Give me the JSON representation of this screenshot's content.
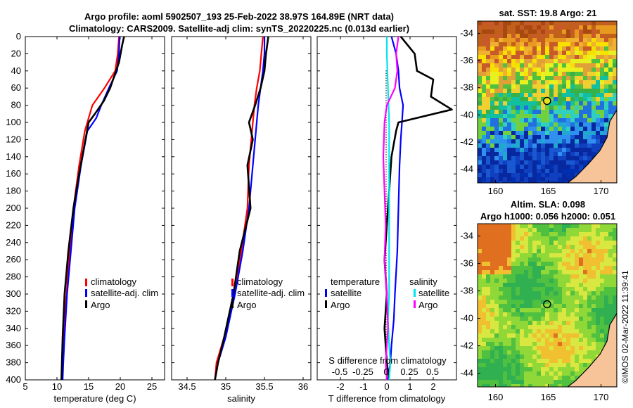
{
  "header": {
    "title_line1": "Argo profile: aoml 5902507_193 25-Feb-2022 38.97S 164.89E (NRT data)",
    "title_line2": "Climatology: CARS2009. Satellite-adj clim: synTS_20220225.nc (0.013d earlier)"
  },
  "depth_axis": {
    "ticks": [
      0,
      20,
      40,
      60,
      80,
      100,
      120,
      140,
      160,
      180,
      200,
      220,
      240,
      260,
      280,
      300,
      320,
      340,
      360,
      380,
      400
    ],
    "range": [
      0,
      400
    ]
  },
  "chart_data": [
    {
      "type": "line",
      "name": "temperature",
      "xlabel": "temperature (deg C)",
      "xlim": [
        5,
        27
      ],
      "xticks": [
        5,
        10,
        15,
        20,
        25
      ],
      "ylim": [
        0,
        400
      ],
      "series": [
        {
          "name": "climatology",
          "color": "#ff0000",
          "x": [
            19.8,
            19.6,
            19.2,
            17.5,
            15.6,
            14.8,
            14.4,
            13.5,
            12.6,
            12.0,
            11.5,
            11.0,
            10.9,
            10.7
          ],
          "y": [
            0,
            20,
            40,
            60,
            80,
            100,
            110,
            150,
            200,
            250,
            300,
            350,
            380,
            400
          ]
        },
        {
          "name": "satellite-adj. clim",
          "color": "#0000ff",
          "x": [
            19.9,
            19.8,
            19.5,
            18.2,
            17.0,
            16.2,
            14.8,
            13.8,
            12.8,
            12.2,
            11.6,
            11.2,
            11.0,
            10.9
          ],
          "y": [
            0,
            20,
            40,
            60,
            80,
            95,
            110,
            150,
            200,
            250,
            300,
            350,
            380,
            400
          ]
        },
        {
          "name": "Argo",
          "color": "#000000",
          "x": [
            20.6,
            20.3,
            19.8,
            18.4,
            17.4,
            16.0,
            15.0,
            14.5,
            13.5,
            12.6,
            11.8,
            11.2,
            10.9,
            10.7
          ],
          "y": [
            0,
            10,
            30,
            60,
            75,
            90,
            100,
            120,
            160,
            200,
            250,
            300,
            350,
            400
          ]
        }
      ],
      "legend": [
        "climatology",
        "satellite-adj. clim",
        "Argo"
      ]
    },
    {
      "type": "line",
      "name": "salinity",
      "xlabel": "salinity",
      "xlim": [
        34.3,
        36.1
      ],
      "xticks": [
        34.5,
        35,
        35.5,
        36
      ],
      "xtick_labels": [
        "34.5",
        "35",
        "35.5",
        "36"
      ],
      "ylim": [
        0,
        400
      ],
      "series": [
        {
          "name": "climatology",
          "color": "#ff0000",
          "x": [
            35.48,
            35.46,
            35.44,
            35.4,
            35.37,
            35.35,
            35.33,
            35.3,
            35.28,
            35.2,
            35.1,
            34.98,
            34.88,
            34.86
          ],
          "y": [
            0,
            20,
            40,
            60,
            80,
            100,
            120,
            150,
            200,
            250,
            300,
            350,
            380,
            400
          ]
        },
        {
          "name": "satellite-adj. clim",
          "color": "#0000ff",
          "x": [
            35.5,
            35.5,
            35.48,
            35.45,
            35.42,
            35.4,
            35.38,
            35.35,
            35.3,
            35.22,
            35.12,
            35.0,
            34.9,
            34.86
          ],
          "y": [
            0,
            20,
            40,
            60,
            80,
            100,
            120,
            150,
            200,
            250,
            300,
            350,
            380,
            400
          ]
        },
        {
          "name": "Argo",
          "color": "#000000",
          "x": [
            35.55,
            35.52,
            35.5,
            35.45,
            35.38,
            35.3,
            35.35,
            35.28,
            35.32,
            35.18,
            35.1,
            34.98,
            34.9,
            34.86
          ],
          "y": [
            0,
            20,
            40,
            60,
            80,
            100,
            120,
            150,
            200,
            250,
            300,
            350,
            380,
            400
          ]
        }
      ],
      "legend": [
        "climatology",
        "satellite-adj. clim",
        "Argo"
      ]
    },
    {
      "type": "line",
      "name": "differences",
      "xlabel": "T difference from climatology",
      "xlim": [
        -3,
        3
      ],
      "xticks": [
        -2,
        -1,
        0,
        1,
        2
      ],
      "xtick_labels": [
        "-2",
        "-1",
        "0",
        "1",
        "2"
      ],
      "top_xlabel": "S difference from climatology",
      "top_ticks": [
        -0.5,
        -0.25,
        0,
        0.25,
        0.5
      ],
      "top_tick_labels": [
        "-0.5",
        "-0.25",
        "0",
        "0.25",
        "0.5"
      ],
      "ylim": [
        0,
        400
      ],
      "series": [
        {
          "name": "temperature satellite",
          "color": "#0000ff",
          "x": [
            0.2,
            0.4,
            0.5,
            0.55,
            0.7,
            0.65,
            0.6,
            0.55,
            0.5,
            0.45,
            0.35,
            0.3,
            0.2,
            0.15,
            0.05
          ],
          "y": [
            0,
            20,
            40,
            60,
            80,
            100,
            120,
            150,
            200,
            250,
            300,
            330,
            360,
            380,
            400
          ]
        },
        {
          "name": "temperature Argo",
          "color": "#000000",
          "x": [
            0.6,
            1.2,
            1.3,
            2.0,
            1.9,
            2.8,
            0.5,
            0.4,
            0.2,
            0.1,
            0.0,
            -0.1,
            0.0,
            -0.1,
            0.0,
            0.1
          ],
          "y": [
            0,
            20,
            40,
            50,
            70,
            85,
            100,
            110,
            140,
            180,
            220,
            260,
            300,
            340,
            380,
            400
          ]
        },
        {
          "name": "salinity satellite",
          "color": "#00e5ee",
          "x": [
            0.0,
            0.0,
            0.05,
            0.1,
            0.1,
            0.1,
            0.1,
            0.1,
            0.1,
            0.05,
            0.1,
            0.15,
            0.1
          ],
          "y": [
            0,
            20,
            60,
            100,
            140,
            180,
            220,
            260,
            300,
            330,
            360,
            380,
            400
          ]
        },
        {
          "name": "salinity Argo",
          "color": "#ff00ff",
          "x": [
            0.5,
            0.4,
            0.45,
            0.35,
            0.0,
            -0.1,
            -0.15,
            -0.1,
            -0.05,
            -0.1,
            0.0,
            0.05,
            -0.05,
            0.0
          ],
          "y": [
            0,
            20,
            40,
            60,
            80,
            100,
            140,
            180,
            220,
            260,
            300,
            340,
            380,
            400
          ]
        }
      ],
      "legend_temperature": {
        "heading": "temperature",
        "items": [
          "satellite",
          "Argo"
        ]
      },
      "legend_salinity": {
        "heading": "salinity",
        "items": [
          "satellite",
          "Argo"
        ]
      }
    },
    {
      "type": "heatmap",
      "name": "sst map",
      "title": "sat. SST: 19.8 Argo: 21",
      "xticks": [
        160,
        165,
        170
      ],
      "yticks": [
        -34,
        -36,
        -38,
        -40,
        -42,
        -44
      ],
      "xlim": [
        158.3,
        171.5
      ],
      "ylim": [
        -45,
        -33.1
      ],
      "marker": {
        "lon": 164.89,
        "lat": -38.97
      }
    },
    {
      "type": "heatmap",
      "name": "sla map",
      "title_line1": "Altim. SLA: 0.098",
      "title_line2": "Argo h1000: 0.056 h2000: 0.051",
      "xticks": [
        160,
        165,
        170
      ],
      "yticks": [
        -34,
        -36,
        -38,
        -40,
        -42,
        -44
      ],
      "xlim": [
        158.3,
        171.5
      ],
      "ylim": [
        -45,
        -33.1
      ],
      "marker": {
        "lon": 164.89,
        "lat": -38.97
      }
    }
  ],
  "credit": "©IMOS 02-Mar-2022 11:39:41"
}
